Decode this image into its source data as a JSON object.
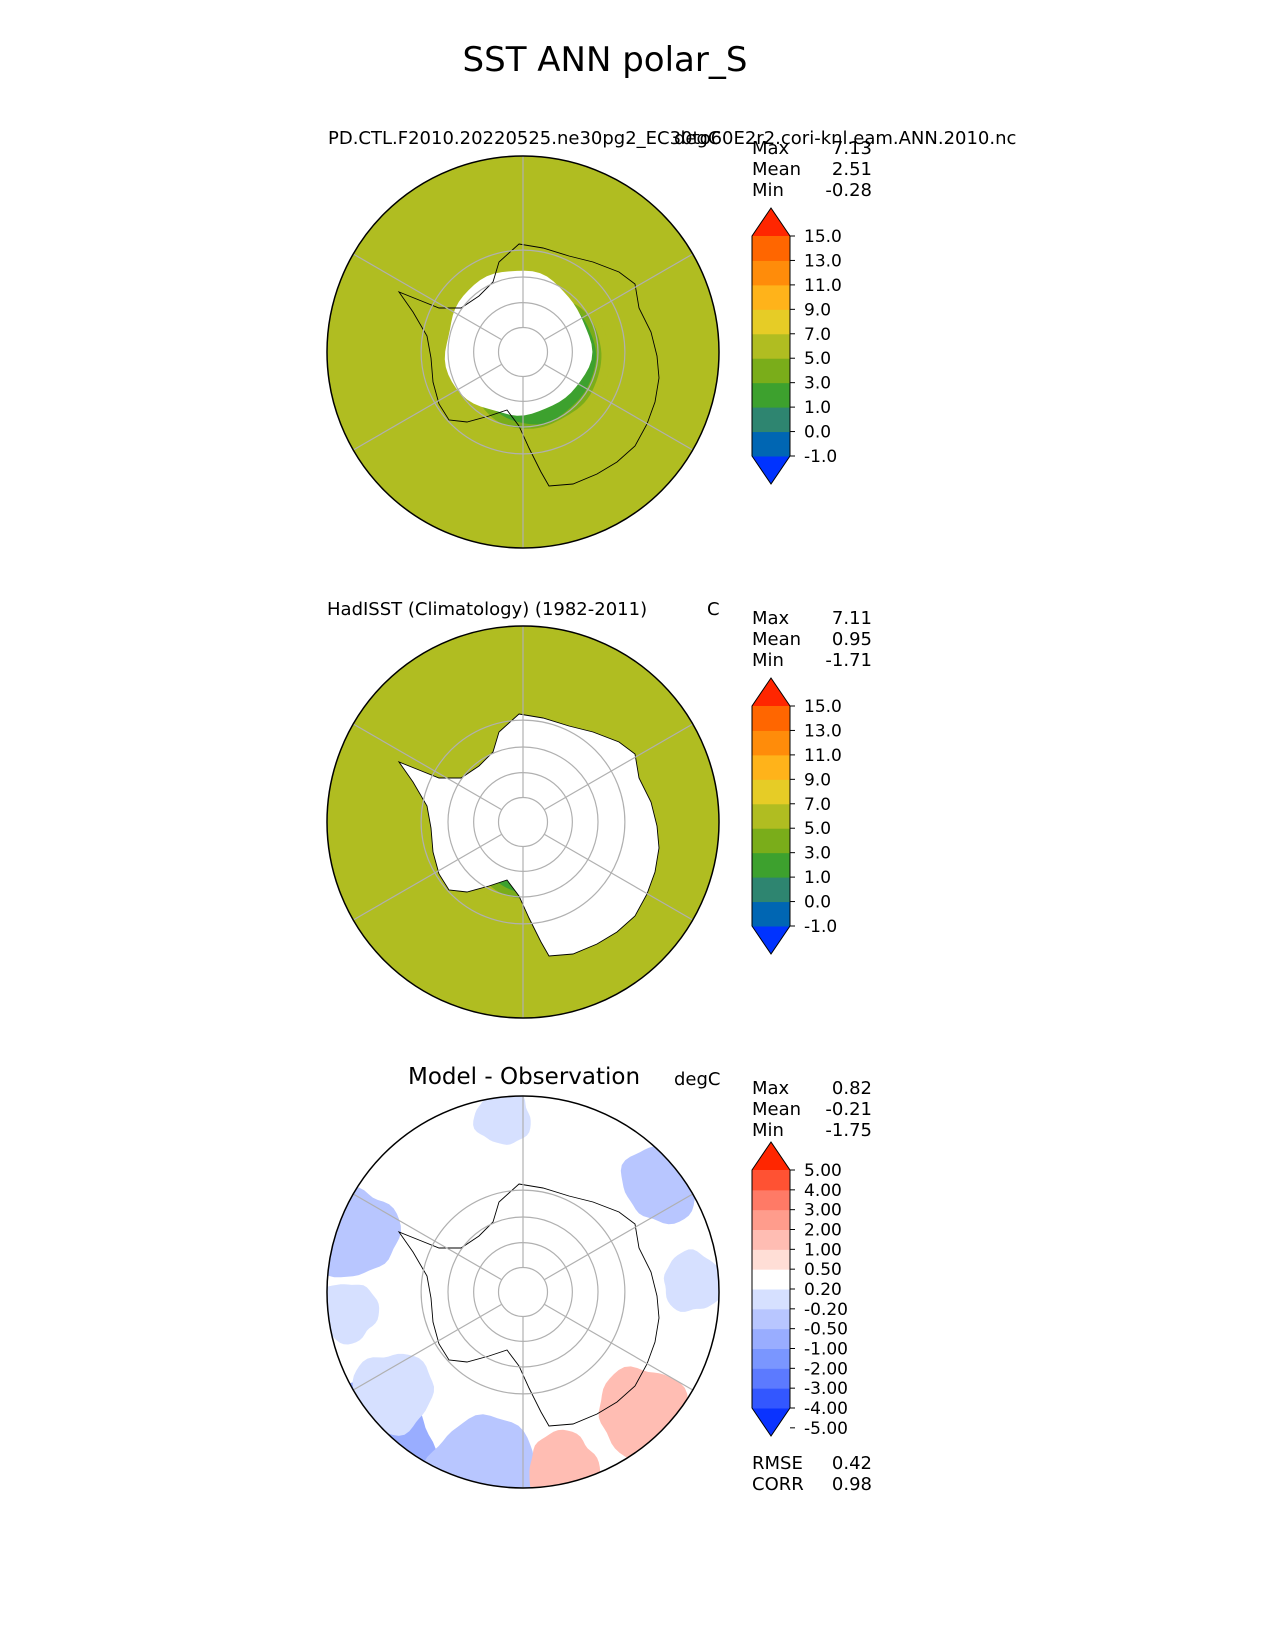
{
  "title": "SST ANN polar_S",
  "colors": {
    "ocean_levels": [
      "#0033ff",
      "#0066b3",
      "#2e8570",
      "#3da12e",
      "#7aad1a",
      "#b0bd21",
      "#e6cc26",
      "#ffb31a",
      "#ff8c0a",
      "#ff6600",
      "#ff2600"
    ],
    "diff_levels": [
      "#0a33ff",
      "#3357ff",
      "#5c7aff",
      "#7a96ff",
      "#99adff",
      "#b8c6ff",
      "#d6e0ff",
      "#ffffff",
      "#ffded6",
      "#ffbdb3",
      "#ff9c8c",
      "#ff7a66",
      "#ff5233",
      "#ff2600"
    ],
    "land": "#ffffff",
    "grid": "#b0b0b0",
    "coast": "#000000"
  },
  "chart_data": [
    {
      "type": "heatmap",
      "projection": "south-polar-stereographic",
      "title": "PD.CTL.F2010.20220525.ne30pg2_EC30to60E2r2.cori-knl.eam.ANN.2010.nc",
      "units": "degC",
      "stats": [
        {
          "label": "Max",
          "value": "7.13"
        },
        {
          "label": "Mean",
          "value": "2.51"
        },
        {
          "label": "Min",
          "value": "-0.28"
        }
      ],
      "levels": [
        "15.0",
        "13.0",
        "11.0",
        "9.0",
        "7.0",
        "5.0",
        "3.0",
        "1.0",
        "0.0",
        "-1.0"
      ],
      "colorbar_extend": "both",
      "ice_edge_latitude": -61,
      "rings": [
        {
          "lat": -90,
          "level": 1
        },
        {
          "lat": -64,
          "level": 3
        },
        {
          "lat": -62,
          "level": 4
        },
        {
          "lat": -59,
          "level": 5
        }
      ]
    },
    {
      "type": "heatmap",
      "projection": "south-polar-stereographic",
      "title": "HadISST (Climatology) (1982-2011)",
      "units": "C",
      "stats": [
        {
          "label": "Max",
          "value": "7.11"
        },
        {
          "label": "Mean",
          "value": "0.95"
        },
        {
          "label": "Min",
          "value": "-1.71"
        }
      ],
      "levels": [
        "15.0",
        "13.0",
        "11.0",
        "9.0",
        "7.0",
        "5.0",
        "3.0",
        "1.0",
        "0.0",
        "-1.0"
      ],
      "colorbar_extend": "both",
      "rings": [
        {
          "lat": -90,
          "level": 2
        },
        {
          "lat": -64,
          "level": 3
        },
        {
          "lat": -62,
          "level": 4
        },
        {
          "lat": -59,
          "level": 5
        }
      ]
    },
    {
      "type": "heatmap",
      "projection": "south-polar-stereographic",
      "title": "Model - Observation",
      "units": "degC",
      "stats": [
        {
          "label": "Max",
          "value": "0.82"
        },
        {
          "label": "Mean",
          "value": "-0.21"
        },
        {
          "label": "Min",
          "value": "-1.75"
        }
      ],
      "levels": [
        "5.00",
        "4.00",
        "3.00",
        "2.00",
        "1.00",
        "0.50",
        "0.20",
        "-0.20",
        "-0.50",
        "-1.00",
        "-2.00",
        "-3.00",
        "-4.00",
        "-5.00"
      ],
      "colorbar_extend": "both",
      "metrics": [
        {
          "label": "RMSE",
          "value": "0.42"
        },
        {
          "label": "CORR",
          "value": "0.98"
        }
      ]
    }
  ]
}
